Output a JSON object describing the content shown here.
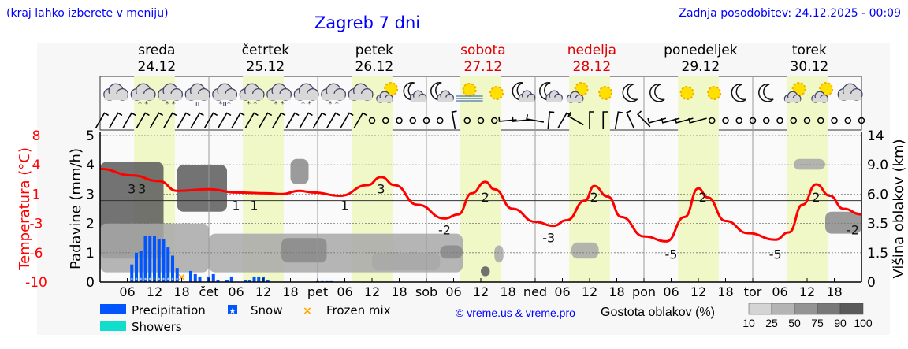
{
  "header": {
    "hint": "(kraj lahko izberete v meniju)",
    "title": "Zagreb 7 dni",
    "updated": "Zadnja posodobitev: 24.12.2025 - 00:09"
  },
  "days": [
    {
      "name": "sreda",
      "date": "24.12",
      "weekend": false
    },
    {
      "name": "četrtek",
      "date": "25.12",
      "weekend": false
    },
    {
      "name": "petek",
      "date": "26.12",
      "weekend": false
    },
    {
      "name": "sobota",
      "date": "27.12",
      "weekend": true
    },
    {
      "name": "nedelja",
      "date": "28.12",
      "weekend": true
    },
    {
      "name": "ponedeljek",
      "date": "29.12",
      "weekend": false
    },
    {
      "name": "torek",
      "date": "30.12",
      "weekend": false
    }
  ],
  "colors": {
    "temperature": "#ff0000",
    "precipitation": "#0055ff",
    "showers": "#11ddcc",
    "frozen_mix": "#ffaa00",
    "daylight": "#f0f8c8",
    "weekend": "#dd0000",
    "title": "#0000ff"
  },
  "legend": {
    "precipitation": "Precipitation",
    "snow": "Snow",
    "frozen_mix": "Frozen mix",
    "showers": "Showers",
    "credit": "© vreme.us & vreme.pro",
    "cloud_density_label": "Gostota oblakov (%)",
    "cloud_density_ticks": [
      "10",
      "25",
      "50",
      "75",
      "90",
      "100"
    ]
  },
  "chart_data": {
    "type": "line",
    "xlabel": "",
    "x_tick_labels": [
      "06",
      "12",
      "18",
      "čet",
      "06",
      "12",
      "18",
      "pet",
      "06",
      "12",
      "18",
      "sob",
      "06",
      "12",
      "18",
      "ned",
      "06",
      "12",
      "18",
      "pon",
      "06",
      "12",
      "18",
      "tor",
      "06",
      "12",
      "18"
    ],
    "y_left_outer": {
      "label": "Temperatura (°C)",
      "ticks": [
        "8",
        "4",
        "1",
        "-3",
        "-6",
        "-10"
      ],
      "range": [
        -10,
        8
      ]
    },
    "y_left": {
      "label": "Padavine (mm/h)",
      "ticks": [
        "5",
        "4",
        "3",
        "2",
        "1",
        "0"
      ],
      "range": [
        0,
        5
      ]
    },
    "y_right": {
      "label": "Višina oblakov (km)",
      "ticks": [
        "14",
        "9.0",
        "6.0",
        "3.5",
        "1.5",
        "0"
      ]
    },
    "grid": true,
    "temperature": [
      [
        "24.12 00",
        3.9
      ],
      [
        "24.12 07",
        3.1
      ],
      [
        "24.12 13",
        2.4
      ],
      [
        "24.12 17",
        1.2
      ],
      [
        "25.12 00",
        1.4
      ],
      [
        "25.12 06",
        1.0
      ],
      [
        "25.12 13",
        0.9
      ],
      [
        "25.12 16",
        0.8
      ],
      [
        "25.12 20",
        1.2
      ],
      [
        "25.12 23",
        1.0
      ],
      [
        "26.12 05",
        0.6
      ],
      [
        "26.12 11",
        1.9
      ],
      [
        "26.12 14",
        2.9
      ],
      [
        "26.12 17",
        1.9
      ],
      [
        "26.12 22",
        -0.5
      ],
      [
        "27.12 04",
        -2.2
      ],
      [
        "27.12 07",
        -1.7
      ],
      [
        "27.12 10",
        0.9
      ],
      [
        "27.12 13",
        2.3
      ],
      [
        "27.12 15",
        1.4
      ],
      [
        "27.12 19",
        -1.0
      ],
      [
        "28.12 00",
        -2.6
      ],
      [
        "28.12 04",
        -3.1
      ],
      [
        "28.12 07",
        -2.4
      ],
      [
        "28.12 11",
        0.0
      ],
      [
        "28.12 13",
        1.8
      ],
      [
        "28.12 16",
        0.5
      ],
      [
        "28.12 19",
        -2.0
      ],
      [
        "29.12 00",
        -4.4
      ],
      [
        "29.12 05",
        -5.0
      ],
      [
        "29.12 09",
        -2.0
      ],
      [
        "29.12 12",
        1.5
      ],
      [
        "29.12 14",
        0.4
      ],
      [
        "29.12 18",
        -2.5
      ],
      [
        "29.12 23",
        -4.0
      ],
      [
        "30.12 05",
        -4.8
      ],
      [
        "30.12 08",
        -3.9
      ],
      [
        "30.12 11",
        -0.5
      ],
      [
        "30.12 14",
        2.0
      ],
      [
        "30.12 17",
        0.6
      ],
      [
        "30.12 20",
        -1.0
      ],
      [
        "31.12 00",
        -1.7
      ]
    ],
    "temperature_labels": [
      [
        "24.12 07",
        "3"
      ],
      [
        "24.12 08",
        "3"
      ],
      [
        "25.12 06",
        "1"
      ],
      [
        "25.12 10",
        "1"
      ],
      [
        "26.12 06",
        "1"
      ],
      [
        "26.12 14",
        "3"
      ],
      [
        "27.12 04",
        "-2"
      ],
      [
        "27.12 13",
        "2"
      ],
      [
        "28.12 03",
        "-3"
      ],
      [
        "28.12 13",
        "2"
      ],
      [
        "29.12 06",
        "-5"
      ],
      [
        "29.12 13",
        "2"
      ],
      [
        "30.12 05",
        "-5"
      ],
      [
        "30.12 14",
        "2"
      ],
      [
        "31.12 00",
        "-2"
      ]
    ],
    "precipitation_mm_h": [
      [
        "24.12 07",
        0.6,
        "snow"
      ],
      [
        "24.12 08",
        1.0,
        "snow"
      ],
      [
        "24.12 09",
        1.07,
        "snow"
      ],
      [
        "24.12 10",
        1.58,
        "snow"
      ],
      [
        "24.12 11",
        1.58,
        "snow"
      ],
      [
        "24.12 12",
        1.58,
        "snow"
      ],
      [
        "24.12 13",
        1.47,
        "snow"
      ],
      [
        "24.12 14",
        1.47,
        "snow"
      ],
      [
        "24.12 15",
        1.18,
        "snow"
      ],
      [
        "24.12 16",
        0.9,
        "snow"
      ],
      [
        "24.12 17",
        0.48,
        "snow"
      ],
      [
        "24.12 18",
        0.0,
        "frozen_mix"
      ],
      [
        "24.12 20",
        0.38,
        ""
      ],
      [
        "24.12 21",
        0.27,
        ""
      ],
      [
        "24.12 22",
        0.19,
        ""
      ],
      [
        "25.12 00",
        0.19,
        ""
      ],
      [
        "25.12 01",
        0.27,
        ""
      ],
      [
        "25.12 02",
        0.08,
        ""
      ],
      [
        "25.12 04",
        0.08,
        ""
      ],
      [
        "25.12 05",
        0.19,
        ""
      ],
      [
        "25.12 08",
        0.08,
        ""
      ],
      [
        "25.12 09",
        0.08,
        ""
      ],
      [
        "25.12 10",
        0.19,
        ""
      ],
      [
        "25.12 11",
        0.19,
        ""
      ],
      [
        "25.12 12",
        0.19,
        ""
      ],
      [
        "25.12 13",
        0.08,
        ""
      ],
      [
        "26.12 00",
        0.03,
        ""
      ],
      [
        "26.12 01",
        0.03,
        ""
      ],
      [
        "26.12 02",
        0.03,
        ""
      ],
      [
        "26.12 03",
        0.03,
        ""
      ]
    ],
    "cloud_density": [
      [
        "24.12 00",
        "24.12 14",
        1.2,
        9.5,
        90
      ],
      [
        "24.12 00",
        "25.12 00",
        0.5,
        3.5,
        50
      ],
      [
        "24.12 17",
        "25.12 04",
        4.5,
        9.0,
        90
      ],
      [
        "25.12 00",
        "27.12 08",
        0.5,
        2.8,
        50
      ],
      [
        "25.12 16",
        "26.12 02",
        1.0,
        2.5,
        75
      ],
      [
        "26.12 12",
        "27.12 03",
        0.6,
        1.5,
        50
      ],
      [
        "25.12 18",
        "25.12 22",
        7.0,
        10.0,
        75
      ],
      [
        "27.12 12",
        "27.12 14",
        0.3,
        0.8,
        90
      ],
      [
        "27.12 03",
        "27.12 08",
        1.2,
        2.0,
        75
      ],
      [
        "28.12 08",
        "28.12 14",
        1.2,
        2.2,
        50
      ],
      [
        "30.12 16",
        "31.12 00",
        2.8,
        4.5,
        75
      ],
      [
        "30.12 09",
        "30.12 16",
        8.5,
        10.0,
        50
      ],
      [
        "27.12 15",
        "27.12 17",
        1.0,
        2.0,
        50
      ]
    ],
    "weather_icons": [
      "cloudy",
      "snow",
      "snow",
      "rain",
      "sleet",
      "snow",
      "snow",
      "snow",
      "snow",
      "cloudy",
      "partly-sunny",
      "moon-cloud",
      "moon-cloud",
      "fog-sun",
      "sunny",
      "moon-cloud",
      "moon-cloud",
      "partly-sunny",
      "sunny",
      "moon",
      "moon",
      "sunny",
      "sunny",
      "moon",
      "moon",
      "partly-sunny",
      "partly-sunny",
      "cloudy"
    ],
    "wind_directions_3h": [
      30,
      30,
      30,
      30,
      30,
      30,
      30,
      30,
      30,
      30,
      30,
      30,
      30,
      30,
      30,
      30,
      30,
      30,
      30,
      30,
      null,
      null,
      null,
      null,
      null,
      null,
      350,
      null,
      null,
      null,
      265,
      265,
      280,
      5,
      30,
      300,
      0,
      0,
      10,
      335,
      315,
      255,
      255,
      255,
      255,
      null,
      null,
      null,
      null,
      null,
      null,
      null,
      null,
      null,
      null,
      null,
      null
    ]
  }
}
